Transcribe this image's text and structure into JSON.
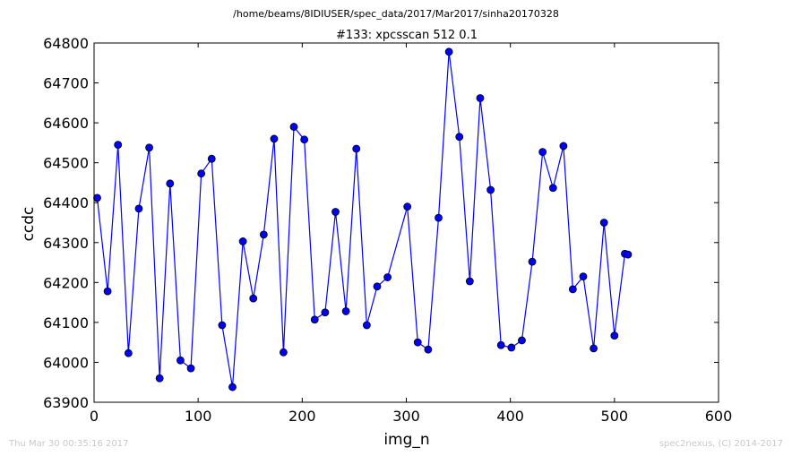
{
  "figure": {
    "suptitle": "/home/beams/8IDIUSER/spec_data/2017/Mar2017/sinha20170328",
    "footer_left": "Thu Mar 30 00:35:16 2017",
    "footer_right": "spec2nexus, (C) 2014-2017"
  },
  "chart_data": {
    "type": "line",
    "title": "#133: xpcsscan 512 0.1",
    "xlabel": "img_n",
    "ylabel": "ccdc",
    "xlim": [
      0,
      600
    ],
    "ylim": [
      63900,
      64800
    ],
    "xticks": [
      0,
      100,
      200,
      300,
      400,
      500,
      600
    ],
    "yticks": [
      63900,
      64000,
      64100,
      64200,
      64300,
      64400,
      64500,
      64600,
      64700,
      64800
    ],
    "grid": false,
    "line_color": "#0000ff",
    "marker_color": "#0000ff",
    "series": [
      {
        "x": [
          3,
          13,
          23,
          33,
          43,
          53,
          63,
          73,
          83,
          93,
          103,
          113,
          123,
          133,
          143,
          153,
          163,
          173,
          182,
          192,
          202,
          212,
          222,
          232,
          242,
          252,
          262,
          272,
          282,
          301,
          311,
          321,
          331,
          341,
          351,
          361,
          371,
          381,
          391,
          401,
          411,
          421,
          431,
          441,
          451,
          460,
          470,
          480,
          490,
          500,
          510,
          513
        ],
        "y": [
          64412,
          64178,
          64545,
          64023,
          64385,
          64538,
          63960,
          64448,
          64005,
          63985,
          64473,
          64510,
          64093,
          63938,
          64303,
          64160,
          64320,
          64560,
          64025,
          64590,
          64558,
          64107,
          64125,
          64377,
          64128,
          64535,
          64093,
          64190,
          64213,
          64390,
          64050,
          64032,
          64362,
          64778,
          64565,
          64203,
          64662,
          64432,
          64043,
          64037,
          64055,
          64252,
          64527,
          64437,
          64542,
          64183,
          64215,
          64035,
          64350,
          64067,
          64272,
          64270
        ]
      }
    ]
  }
}
